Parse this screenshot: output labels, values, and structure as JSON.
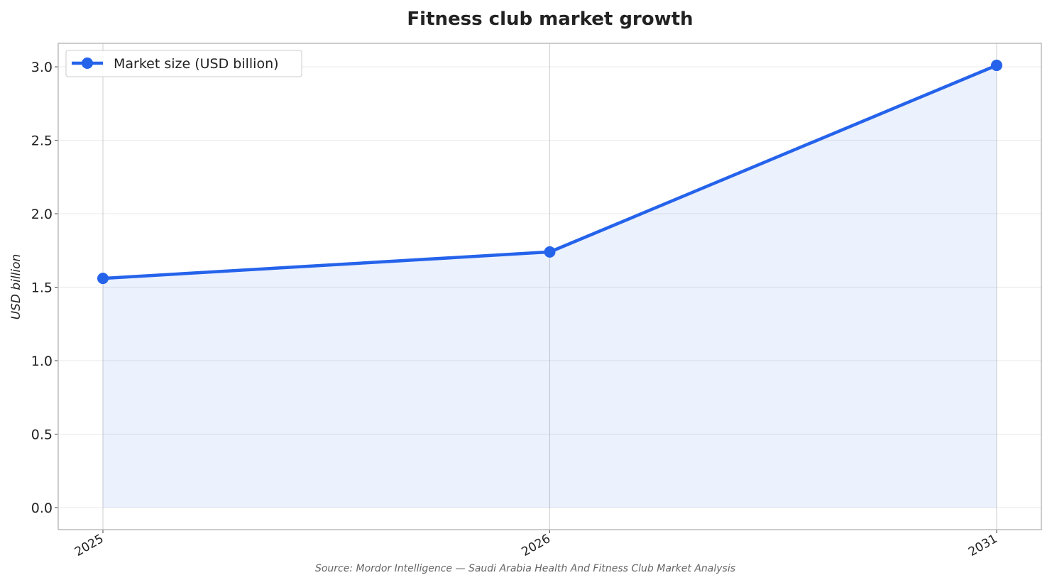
{
  "chart_data": {
    "type": "line",
    "title": "Fitness club market growth",
    "y_label": "USD billion",
    "source": "Source: Mordor Intelligence — Saudi Arabia Health And Fitness Club Market Analysis",
    "categories": [
      "2025",
      "2026",
      "2031"
    ],
    "series": [
      {
        "name": "Market size (USD billion)",
        "color": "#2563eb",
        "values": [
          1.56,
          1.74,
          3.01
        ]
      }
    ],
    "ylim": [
      -0.15,
      3.16
    ],
    "yticks": [
      {
        "value": 0,
        "label": "0.0"
      },
      0.5,
      {
        "value": 1,
        "label": "1.0"
      },
      1.5,
      {
        "value": 2,
        "label": "2.0"
      },
      2.5,
      {
        "value": 3,
        "label": "3.0"
      }
    ],
    "grid": true,
    "area_fill": true,
    "legend": "upper left"
  }
}
